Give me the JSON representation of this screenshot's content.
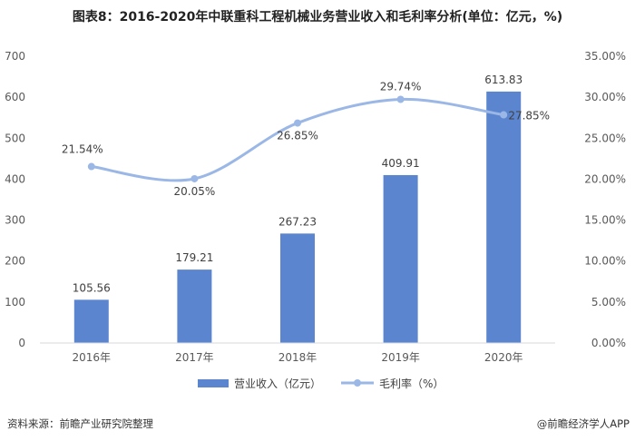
{
  "title": "图表8：2016-2020年中联重科工程机械业务营业收入和毛利率分析(单位：亿元，%)",
  "footer": {
    "source": "资料来源：前瞻产业研究院整理",
    "brand": "@前瞻经济学人APP"
  },
  "colors": {
    "bar": "#5b86cf",
    "line": "#9bb7e6",
    "grid": "#d9d9d9"
  },
  "chart_data": {
    "type": "bar",
    "title": "图表8：2016-2020年中联重科工程机械业务营业收入和毛利率分析(单位：亿元，%)",
    "categories": [
      "2016年",
      "2017年",
      "2018年",
      "2019年",
      "2020年"
    ],
    "series": [
      {
        "name": "营业收入（亿元）",
        "type": "bar",
        "axis": "left",
        "values": [
          105.56,
          179.21,
          267.23,
          409.91,
          613.83
        ],
        "labels": [
          "105.56",
          "179.21",
          "267.23",
          "409.91",
          "613.83"
        ]
      },
      {
        "name": "毛利率（%）",
        "type": "line",
        "axis": "right",
        "values": [
          21.54,
          20.05,
          26.85,
          29.74,
          27.85
        ],
        "labels": [
          "21.54%",
          "20.05%",
          "26.85%",
          "29.74%",
          "27.85%"
        ]
      }
    ],
    "ylim_left": [
      0,
      700
    ],
    "yticks_left": [
      "0",
      "100",
      "200",
      "300",
      "400",
      "500",
      "600",
      "700"
    ],
    "ylim_right": [
      0,
      35
    ],
    "yticks_right": [
      "0.00%",
      "5.00%",
      "10.00%",
      "15.00%",
      "20.00%",
      "25.00%",
      "30.00%",
      "35.00%"
    ],
    "grid": false,
    "legend_position": "bottom-center"
  }
}
